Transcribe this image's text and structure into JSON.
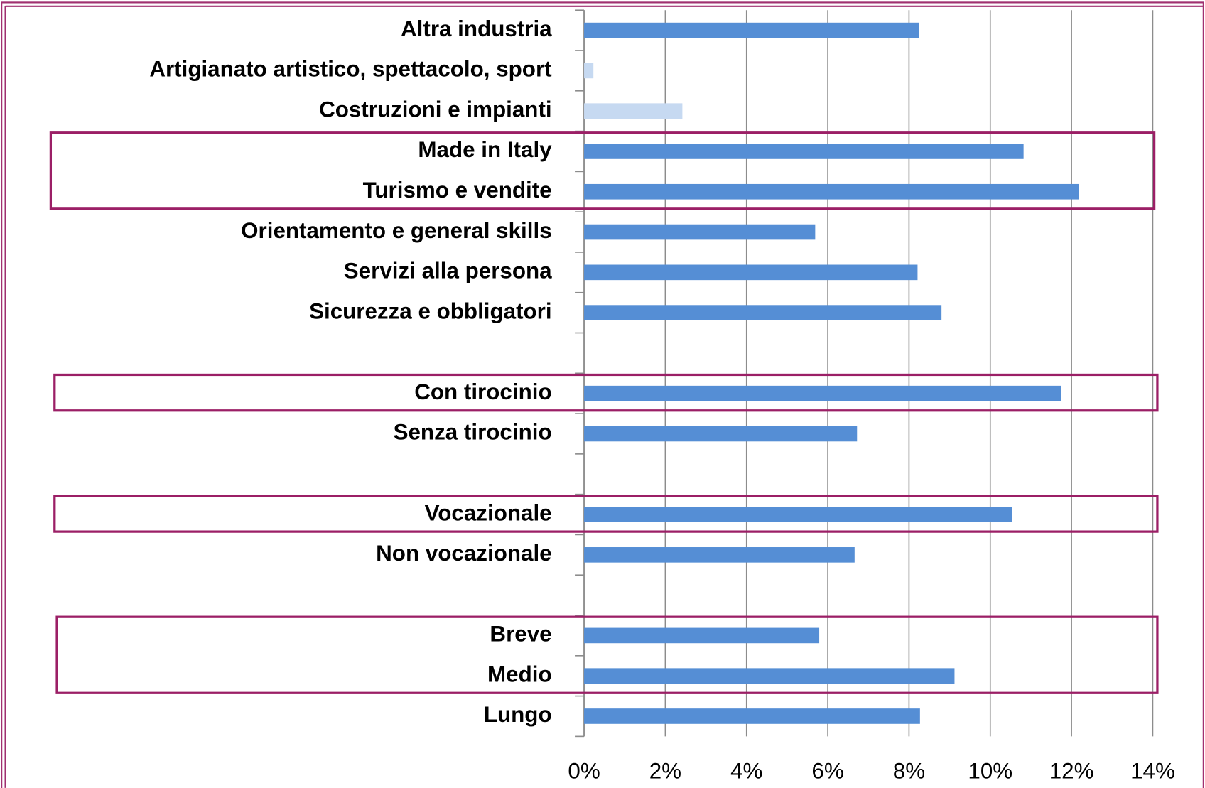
{
  "chart_data": {
    "type": "bar",
    "orientation": "horizontal",
    "categories": [
      "Altra industria",
      "Artigianato artistico, spettacolo, sport",
      "Costruzioni e impianti",
      "Made in Italy",
      "Turismo e vendite",
      "Orientamento e general skills",
      "Servizi alla persona",
      "Sicurezza e obbligatori",
      null,
      "Con tirocinio",
      "Senza tirocinio",
      null,
      "Vocazionale",
      "Non vocazionale",
      null,
      "Breve",
      "Medio",
      "Lungo"
    ],
    "values": [
      8.25,
      0.23,
      2.42,
      10.82,
      12.18,
      5.69,
      8.21,
      8.8,
      null,
      11.75,
      6.72,
      null,
      10.54,
      6.66,
      null,
      5.79,
      9.12,
      8.27
    ],
    "colors": [
      "#558ed5",
      "#c6d9f1",
      "#c6d9f1",
      "#558ed5",
      "#558ed5",
      "#558ed5",
      "#558ed5",
      "#558ed5",
      null,
      "#558ed5",
      "#558ed5",
      null,
      "#558ed5",
      "#558ed5",
      null,
      "#558ed5",
      "#558ed5",
      "#558ed5"
    ],
    "xlim": [
      0,
      14
    ],
    "xticks": [
      {
        "value": 0,
        "label": "0%"
      },
      {
        "value": 2,
        "label": "2%"
      },
      {
        "value": 4,
        "label": "4%"
      },
      {
        "value": 6,
        "label": "6%"
      },
      {
        "value": 8,
        "label": "8%"
      },
      {
        "value": 10,
        "label": "10%"
      },
      {
        "value": 12,
        "label": "12%"
      },
      {
        "value": 14,
        "label": "14%"
      }
    ],
    "grid": true
  }
}
